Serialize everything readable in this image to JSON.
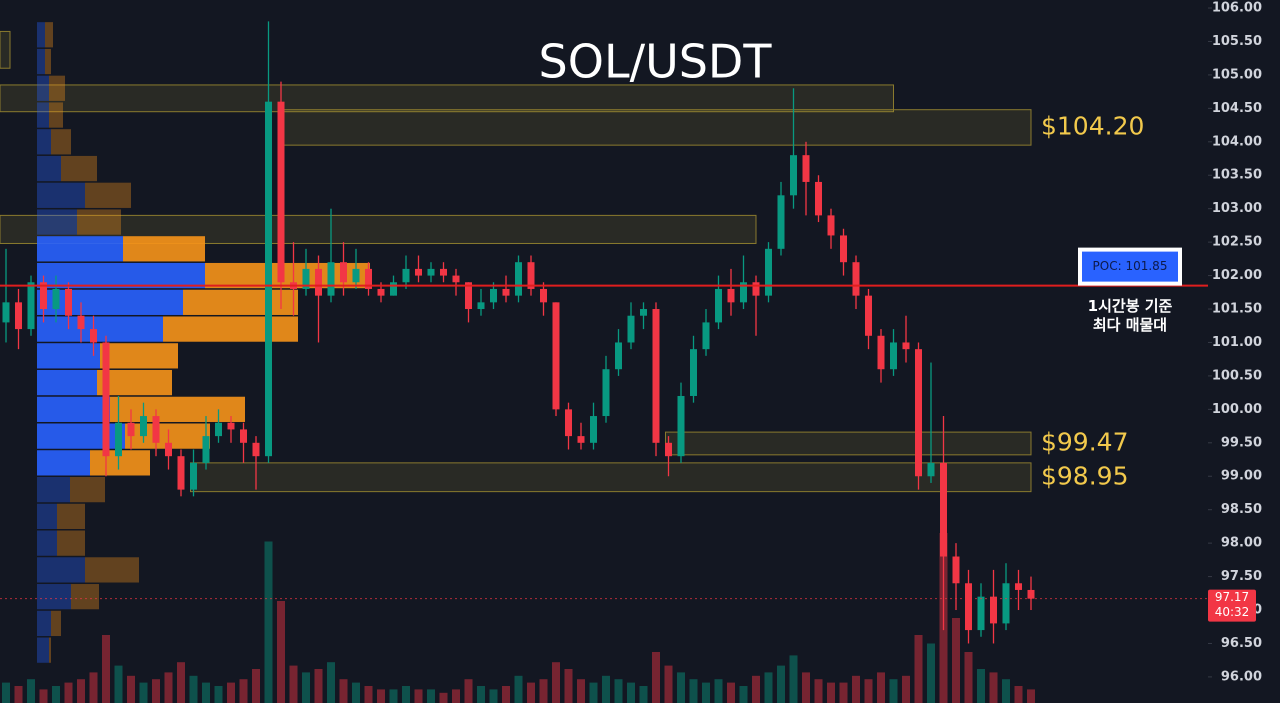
{
  "chart_data": {
    "type": "candlestick",
    "title": "SOL/USDT",
    "ylim": [
      95.61,
      106.12
    ],
    "yticks": [
      {
        "value": 106,
        "label": "106.00"
      },
      {
        "value": 105.5,
        "label": "105.50"
      },
      {
        "value": 105,
        "label": "105.00"
      },
      {
        "value": 104.5,
        "label": "104.50"
      },
      {
        "value": 104,
        "label": "104.00"
      },
      {
        "value": 103.5,
        "label": "103.50"
      },
      {
        "value": 103,
        "label": "103.00"
      },
      {
        "value": 102.5,
        "label": "102.50"
      },
      {
        "value": 102,
        "label": "102.00"
      },
      {
        "value": 101.5,
        "label": "101.50"
      },
      {
        "value": 101,
        "label": "101.00"
      },
      {
        "value": 100.5,
        "label": "100.50"
      },
      {
        "value": 100,
        "label": "100.00"
      },
      {
        "value": 99.5,
        "label": "99.50"
      },
      {
        "value": 99,
        "label": "99.00"
      },
      {
        "value": 98.5,
        "label": "98.50"
      },
      {
        "value": 98,
        "label": "98.00"
      },
      {
        "value": 97.5,
        "label": "97.50"
      },
      {
        "value": 97,
        "label": "97.00"
      },
      {
        "value": 96.5,
        "label": "96.50"
      },
      {
        "value": 96,
        "label": "96.00"
      }
    ],
    "up_color": "#089981",
    "down_color": "#f23645",
    "candles": [
      [
        101.3,
        102.4,
        101.0,
        101.6
      ],
      [
        101.6,
        101.8,
        100.9,
        101.2
      ],
      [
        101.2,
        102.0,
        101.1,
        101.9
      ],
      [
        101.9,
        102.0,
        101.3,
        101.5
      ],
      [
        101.5,
        102.0,
        101.3,
        101.8
      ],
      [
        101.8,
        101.9,
        101.2,
        101.4
      ],
      [
        101.4,
        101.6,
        101.0,
        101.2
      ],
      [
        101.2,
        101.4,
        100.8,
        101.0
      ],
      [
        101.0,
        101.1,
        99.0,
        99.3
      ],
      [
        99.3,
        100.2,
        99.1,
        99.8
      ],
      [
        99.8,
        100.0,
        99.4,
        99.6
      ],
      [
        99.6,
        100.1,
        99.5,
        99.9
      ],
      [
        99.9,
        100.0,
        99.3,
        99.5
      ],
      [
        99.5,
        99.7,
        99.1,
        99.3
      ],
      [
        99.3,
        99.4,
        98.7,
        98.8
      ],
      [
        98.8,
        99.4,
        98.7,
        99.2
      ],
      [
        99.2,
        99.9,
        99.1,
        99.6
      ],
      [
        99.6,
        100.0,
        99.5,
        99.8
      ],
      [
        99.8,
        99.9,
        99.5,
        99.7
      ],
      [
        99.7,
        99.8,
        99.2,
        99.5
      ],
      [
        99.5,
        99.6,
        98.8,
        99.3
      ],
      [
        99.3,
        105.8,
        99.2,
        104.6
      ],
      [
        104.6,
        104.9,
        101.5,
        101.9
      ],
      [
        101.9,
        102.5,
        101.4,
        101.8
      ],
      [
        101.8,
        102.4,
        101.7,
        102.1
      ],
      [
        102.1,
        102.3,
        101.0,
        101.7
      ],
      [
        101.7,
        103.0,
        101.6,
        102.2
      ],
      [
        102.2,
        102.5,
        101.7,
        101.9
      ],
      [
        101.9,
        102.4,
        101.8,
        102.1
      ],
      [
        102.1,
        102.2,
        101.7,
        101.8
      ],
      [
        101.8,
        101.9,
        101.6,
        101.7
      ],
      [
        101.7,
        102.0,
        101.7,
        101.9
      ],
      [
        101.9,
        102.3,
        101.8,
        102.1
      ],
      [
        102.1,
        102.3,
        101.9,
        102.0
      ],
      [
        102.0,
        102.2,
        101.9,
        102.1
      ],
      [
        102.1,
        102.2,
        101.9,
        102.0
      ],
      [
        102.0,
        102.1,
        101.7,
        101.9
      ],
      [
        101.9,
        101.9,
        101.3,
        101.5
      ],
      [
        101.5,
        101.8,
        101.4,
        101.6
      ],
      [
        101.6,
        101.9,
        101.5,
        101.8
      ],
      [
        101.8,
        102.0,
        101.6,
        101.7
      ],
      [
        101.7,
        102.3,
        101.6,
        102.2
      ],
      [
        102.2,
        102.3,
        101.7,
        101.8
      ],
      [
        101.8,
        101.9,
        101.4,
        101.6
      ],
      [
        101.6,
        101.6,
        99.9,
        100.0
      ],
      [
        100.0,
        100.1,
        99.4,
        99.6
      ],
      [
        99.6,
        99.8,
        99.4,
        99.5
      ],
      [
        99.5,
        100.1,
        99.4,
        99.9
      ],
      [
        99.9,
        100.8,
        99.8,
        100.6
      ],
      [
        100.6,
        101.2,
        100.5,
        101.0
      ],
      [
        101.0,
        101.6,
        100.9,
        101.4
      ],
      [
        101.4,
        101.6,
        101.2,
        101.5
      ],
      [
        101.5,
        101.6,
        99.3,
        99.5
      ],
      [
        99.5,
        99.6,
        99.0,
        99.3
      ],
      [
        99.3,
        100.4,
        99.2,
        100.2
      ],
      [
        100.2,
        101.1,
        100.1,
        100.9
      ],
      [
        100.9,
        101.5,
        100.8,
        101.3
      ],
      [
        101.3,
        102.0,
        101.2,
        101.8
      ],
      [
        101.8,
        102.1,
        101.4,
        101.6
      ],
      [
        101.6,
        102.3,
        101.5,
        101.9
      ],
      [
        101.9,
        102.0,
        101.1,
        101.7
      ],
      [
        101.7,
        102.5,
        101.6,
        102.4
      ],
      [
        102.4,
        103.4,
        102.3,
        103.2
      ],
      [
        103.2,
        104.8,
        103.0,
        103.8
      ],
      [
        103.8,
        104.0,
        102.9,
        103.4
      ],
      [
        103.4,
        103.5,
        102.8,
        102.9
      ],
      [
        102.9,
        103.0,
        102.4,
        102.6
      ],
      [
        102.6,
        102.7,
        102.0,
        102.2
      ],
      [
        102.2,
        102.3,
        101.5,
        101.7
      ],
      [
        101.7,
        101.8,
        100.9,
        101.1
      ],
      [
        101.1,
        101.2,
        100.4,
        100.6
      ],
      [
        100.6,
        101.2,
        100.5,
        101.0
      ],
      [
        101.0,
        101.4,
        100.7,
        100.9
      ],
      [
        100.9,
        101.0,
        98.8,
        99.0
      ],
      [
        99.0,
        100.7,
        98.9,
        99.2
      ],
      [
        99.2,
        99.9,
        96.7,
        97.8
      ],
      [
        97.8,
        98.0,
        97.0,
        97.4
      ],
      [
        97.4,
        97.6,
        96.5,
        96.7
      ],
      [
        96.7,
        97.4,
        96.6,
        97.2
      ],
      [
        97.2,
        97.6,
        96.5,
        96.8
      ],
      [
        96.8,
        97.7,
        96.7,
        97.4
      ],
      [
        97.4,
        97.6,
        97.0,
        97.3
      ],
      [
        97.3,
        97.5,
        97.0,
        97.17
      ]
    ],
    "volume": [
      12,
      10,
      14,
      8,
      10,
      12,
      14,
      18,
      40,
      22,
      16,
      12,
      14,
      18,
      24,
      16,
      12,
      10,
      12,
      14,
      20,
      95,
      60,
      22,
      18,
      20,
      24,
      14,
      12,
      10,
      8,
      8,
      10,
      8,
      8,
      6,
      8,
      14,
      10,
      8,
      10,
      16,
      12,
      14,
      24,
      20,
      14,
      12,
      16,
      14,
      12,
      10,
      30,
      22,
      18,
      14,
      12,
      14,
      12,
      10,
      16,
      18,
      22,
      28,
      18,
      14,
      12,
      12,
      16,
      14,
      18,
      14,
      16,
      40,
      35,
      100,
      50,
      30,
      20,
      18,
      14,
      10,
      8
    ],
    "profile": {
      "prices": [
        105.6,
        105.2,
        104.8,
        104.4,
        104.0,
        103.6,
        103.2,
        102.8,
        102.4,
        102.0,
        101.6,
        101.2,
        100.8,
        100.4,
        100.0,
        99.6,
        99.2,
        98.8,
        98.4,
        98.0,
        97.6,
        97.2,
        96.8,
        96.4
      ],
      "buy": [
        8,
        8,
        12,
        12,
        14,
        24,
        48,
        40,
        86,
        168,
        146,
        126,
        63,
        60,
        73,
        88,
        53,
        33,
        20,
        20,
        48,
        34,
        14,
        12
      ],
      "sell": [
        8,
        6,
        16,
        14,
        20,
        36,
        46,
        44,
        82,
        165,
        115,
        135,
        78,
        75,
        135,
        85,
        60,
        35,
        28,
        28,
        54,
        28,
        10,
        2
      ],
      "value_area": [
        102.6,
        99.0
      ],
      "buy_color": "#2962ff",
      "sell_color": "#f7931a"
    },
    "zones": [
      {
        "top": 105.65,
        "bottom": 105.1,
        "start": 0,
        "end": 0
      },
      {
        "top": 104.85,
        "bottom": 104.45,
        "start": 0,
        "end": 71
      },
      {
        "top": 104.48,
        "bottom": 103.95,
        "start": 22,
        "end": 82,
        "label": "$104.20"
      },
      {
        "top": 102.9,
        "bottom": 102.48,
        "start": 0,
        "end": 60
      },
      {
        "top": 99.66,
        "bottom": 99.32,
        "start": 53,
        "end": 82,
        "label": "$99.47"
      },
      {
        "top": 99.2,
        "bottom": 98.77,
        "start": 15,
        "end": 82,
        "label": "$98.95"
      }
    ],
    "poc": {
      "value": 101.85,
      "label": "POC: 101.85",
      "note": [
        "1시간봉 기준",
        "최다 매물대"
      ]
    },
    "last_price": {
      "value": 97.17,
      "label": "97.17",
      "countdown": "40:32"
    }
  }
}
